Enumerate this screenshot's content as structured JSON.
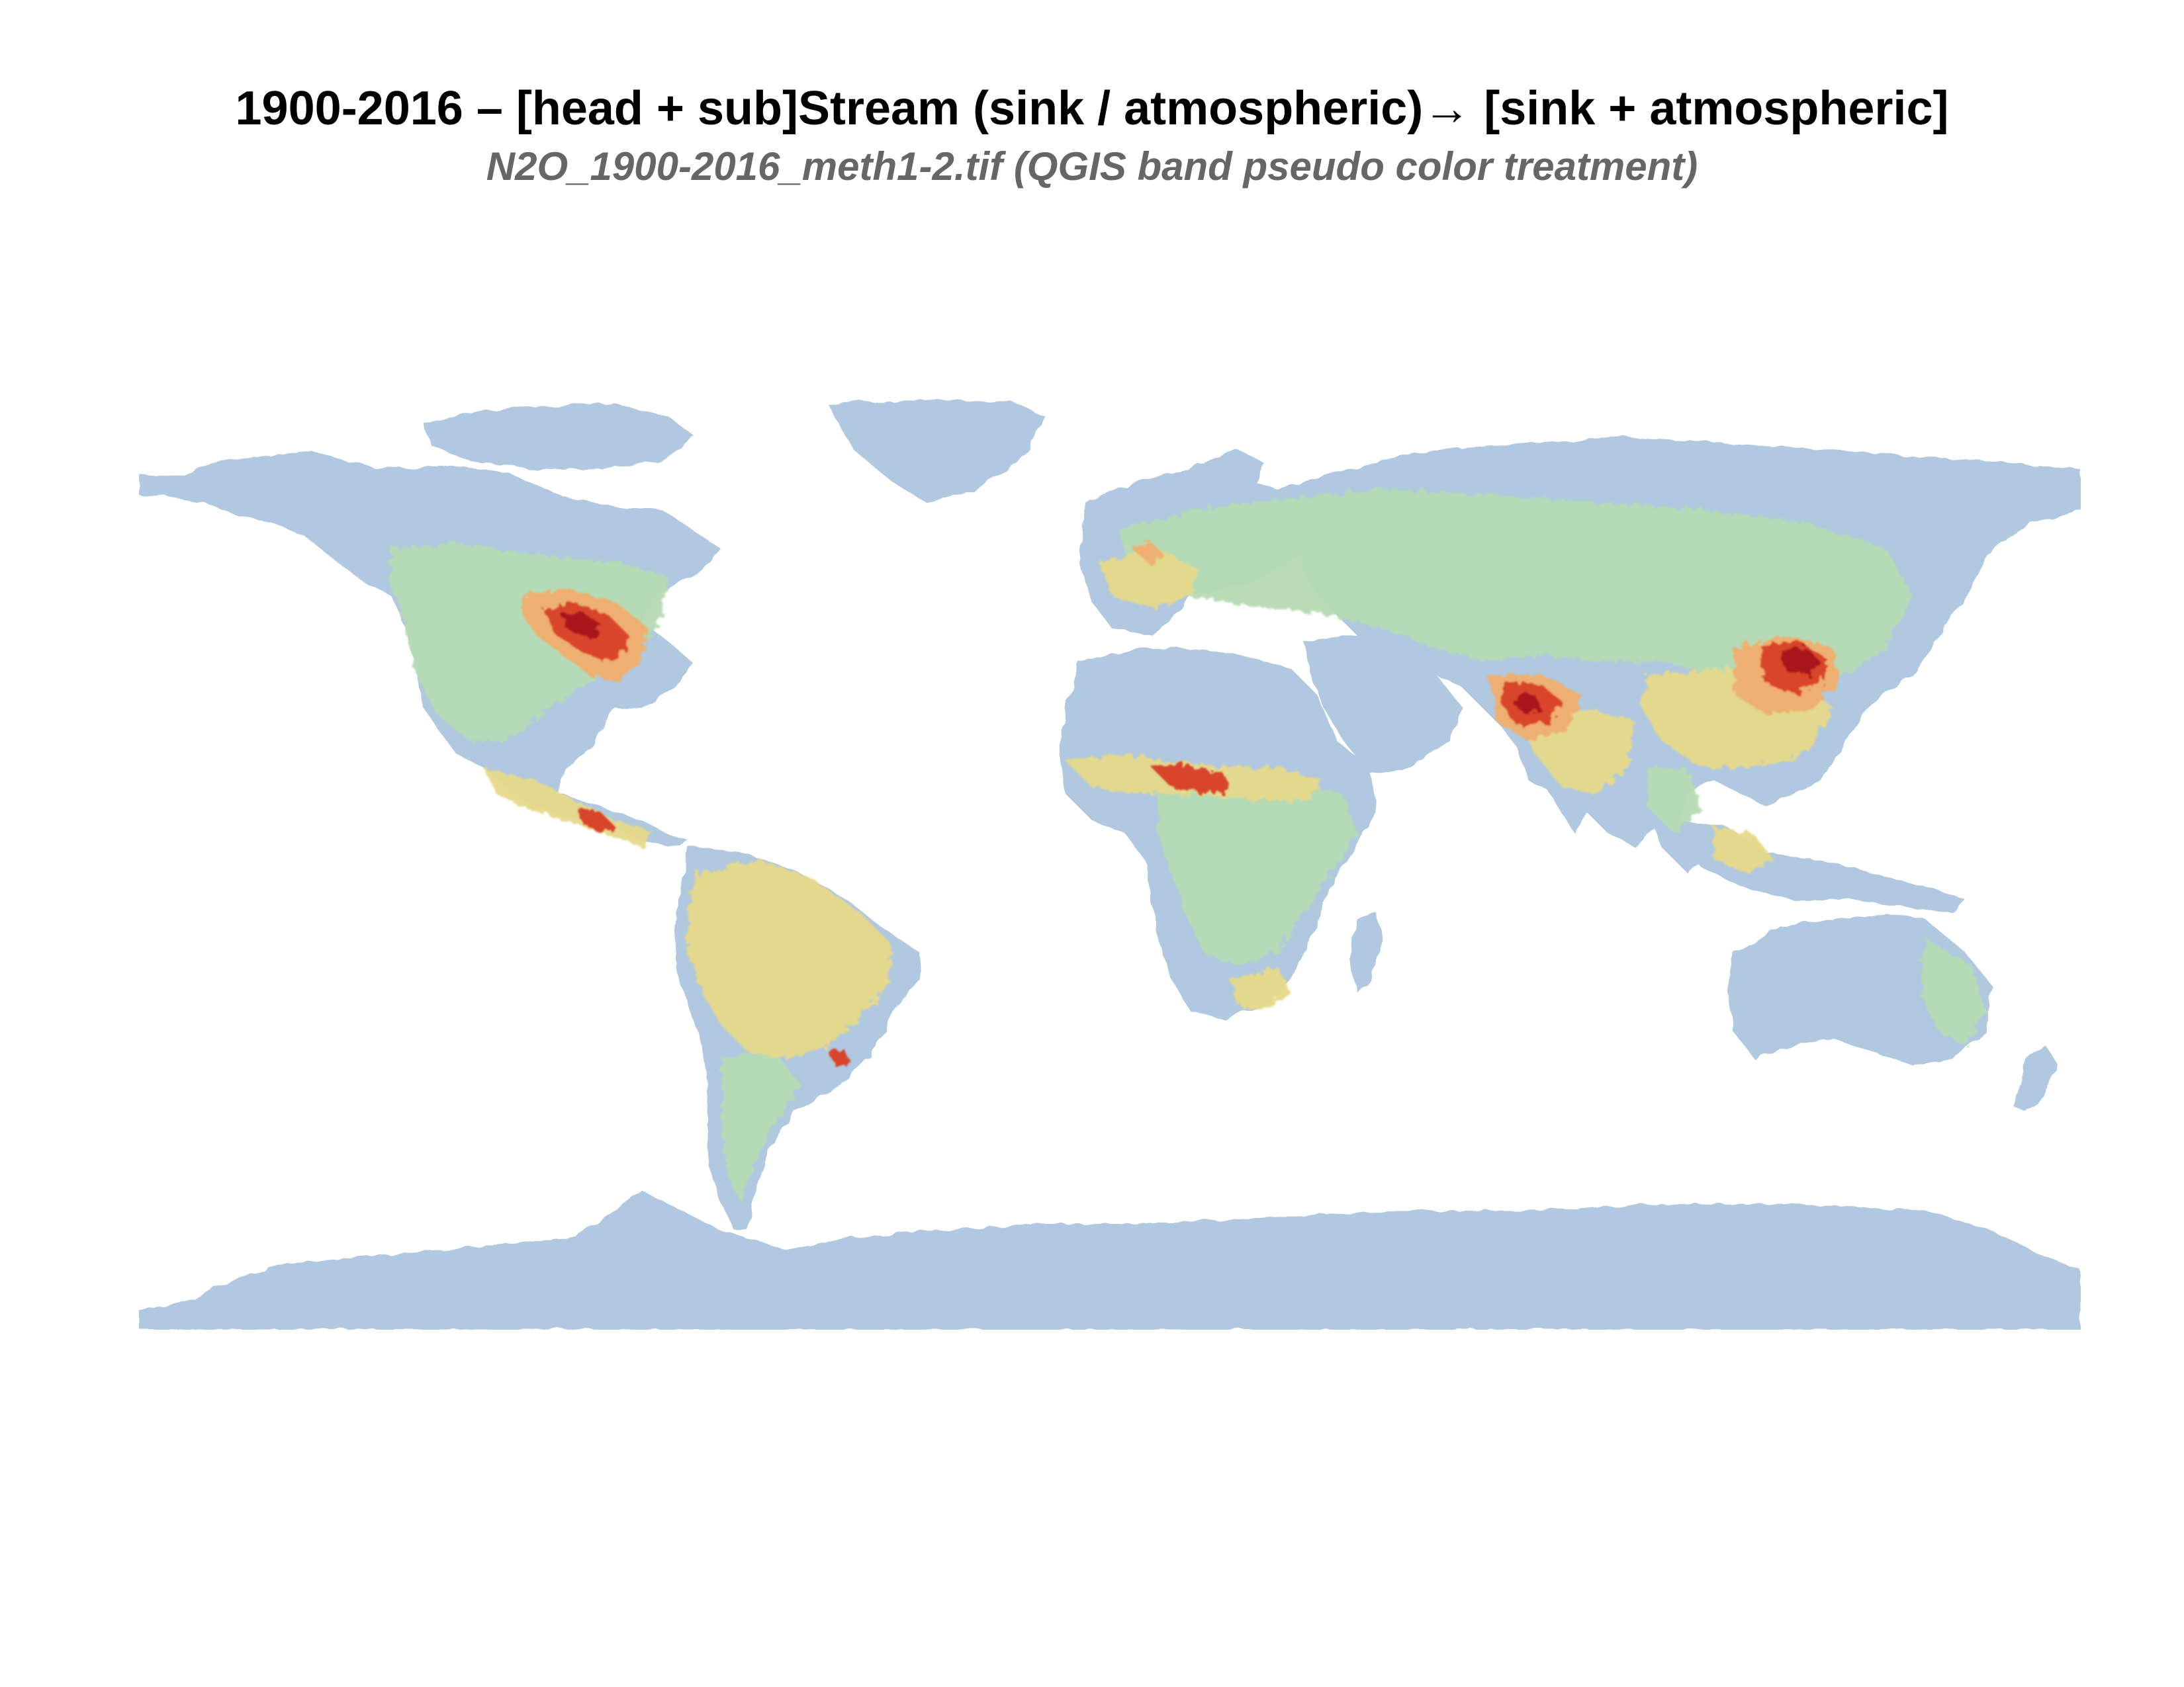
{
  "header": {
    "title": "1900-2016 – [head + sub]Stream (sink / atmospheric)→ [sink + atmospheric]",
    "subtitle": "N2O_1900-2016_meth1-2.tif (QGIS band pseudo color treatment)"
  },
  "colors": {
    "background": "#ffffff",
    "low": "#b0c8e0",
    "low_mid": "#b6dbb4",
    "mid": "#e6d98a",
    "mid_high": "#eeb070",
    "high": "#d9452c",
    "max": "#a8141c"
  }
}
